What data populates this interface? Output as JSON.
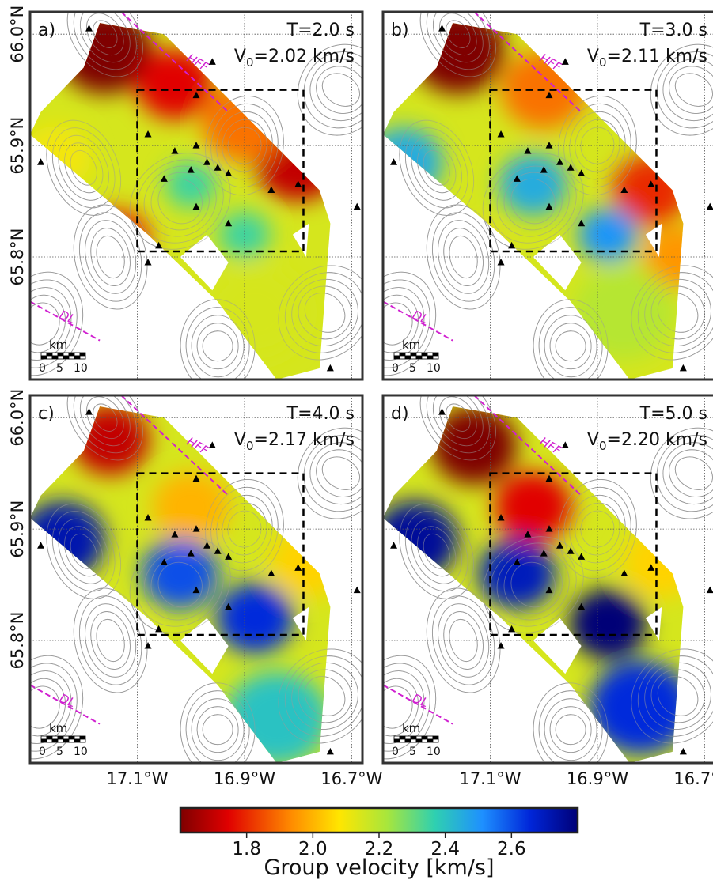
{
  "panels": [
    {
      "id": "a",
      "label": "a)",
      "period": "T=2.0 s",
      "v0_prefix": "V",
      "v0_sub": "0",
      "v0_value": "=2.02 km/s",
      "anomalies": [
        {
          "lon": -17.16,
          "lat": 65.985,
          "v": 1.55,
          "r": 0.055
        },
        {
          "lon": -17.03,
          "lat": 65.955,
          "v": 1.75,
          "r": 0.045
        },
        {
          "lon": -16.8,
          "lat": 65.885,
          "v": 1.7,
          "r": 0.05
        },
        {
          "lon": -16.9,
          "lat": 65.92,
          "v": 1.9,
          "r": 0.05
        },
        {
          "lon": -17.14,
          "lat": 65.815,
          "v": 1.8,
          "r": 0.04
        },
        {
          "lon": -17.25,
          "lat": 65.89,
          "v": 2.1,
          "r": 0.04
        },
        {
          "lon": -17.0,
          "lat": 65.865,
          "v": 2.35,
          "r": 0.03
        },
        {
          "lon": -16.9,
          "lat": 65.82,
          "v": 2.35,
          "r": 0.03
        },
        {
          "lon": -16.88,
          "lat": 65.75,
          "v": 2.15,
          "r": 0.06
        }
      ]
    },
    {
      "id": "b",
      "label": "b)",
      "period": "T=3.0 s",
      "v0_prefix": "V",
      "v0_sub": "0",
      "v0_value": "=2.11 km/s",
      "anomalies": [
        {
          "lon": -17.16,
          "lat": 65.985,
          "v": 1.55,
          "r": 0.055
        },
        {
          "lon": -17.0,
          "lat": 65.95,
          "v": 1.9,
          "r": 0.05
        },
        {
          "lon": -16.8,
          "lat": 65.86,
          "v": 1.8,
          "r": 0.045
        },
        {
          "lon": -16.75,
          "lat": 65.8,
          "v": 1.95,
          "r": 0.04
        },
        {
          "lon": -17.26,
          "lat": 65.885,
          "v": 2.45,
          "r": 0.045
        },
        {
          "lon": -17.02,
          "lat": 65.865,
          "v": 2.45,
          "r": 0.04
        },
        {
          "lon": -16.88,
          "lat": 65.82,
          "v": 2.5,
          "r": 0.035
        },
        {
          "lon": -17.14,
          "lat": 65.8,
          "v": 2.0,
          "r": 0.035
        },
        {
          "lon": -16.85,
          "lat": 65.75,
          "v": 2.2,
          "r": 0.06
        }
      ]
    },
    {
      "id": "c",
      "label": "c)",
      "period": "T=4.0 s",
      "v0_prefix": "V",
      "v0_sub": "0",
      "v0_value": "=2.17 km/s",
      "anomalies": [
        {
          "lon": -17.15,
          "lat": 65.98,
          "v": 1.7,
          "r": 0.045
        },
        {
          "lon": -17.0,
          "lat": 65.92,
          "v": 2.0,
          "r": 0.045
        },
        {
          "lon": -16.78,
          "lat": 65.87,
          "v": 2.05,
          "r": 0.045
        },
        {
          "lon": -17.24,
          "lat": 65.89,
          "v": 2.72,
          "r": 0.05
        },
        {
          "lon": -17.02,
          "lat": 65.86,
          "v": 2.6,
          "r": 0.045
        },
        {
          "lon": -16.88,
          "lat": 65.82,
          "v": 2.65,
          "r": 0.045
        },
        {
          "lon": -17.13,
          "lat": 65.79,
          "v": 2.1,
          "r": 0.035
        },
        {
          "lon": -16.84,
          "lat": 65.73,
          "v": 2.4,
          "r": 0.06
        }
      ]
    },
    {
      "id": "d",
      "label": "d)",
      "period": "T=5.0 s",
      "v0_prefix": "V",
      "v0_sub": "0",
      "v0_value": "=2.20 km/s",
      "anomalies": [
        {
          "lon": -17.13,
          "lat": 65.975,
          "v": 1.6,
          "r": 0.05
        },
        {
          "lon": -17.02,
          "lat": 65.92,
          "v": 1.75,
          "r": 0.045
        },
        {
          "lon": -16.78,
          "lat": 65.87,
          "v": 2.05,
          "r": 0.045
        },
        {
          "lon": -17.24,
          "lat": 65.89,
          "v": 2.75,
          "r": 0.05
        },
        {
          "lon": -17.05,
          "lat": 65.86,
          "v": 2.7,
          "r": 0.045
        },
        {
          "lon": -16.88,
          "lat": 65.815,
          "v": 2.8,
          "r": 0.045
        },
        {
          "lon": -16.82,
          "lat": 65.74,
          "v": 2.65,
          "r": 0.06
        },
        {
          "lon": -17.13,
          "lat": 65.79,
          "v": 2.15,
          "r": 0.035
        }
      ]
    }
  ],
  "axes": {
    "lat_ticks": [
      {
        "value": 66.0,
        "label": "66.0°N"
      },
      {
        "value": 65.9,
        "label": "65.9°N"
      },
      {
        "value": 65.8,
        "label": "65.8°N"
      }
    ],
    "lon_ticks": [
      {
        "value": -17.1,
        "label": "17.1°W"
      },
      {
        "value": -16.9,
        "label": "16.9°W"
      },
      {
        "value": -16.7,
        "label": "16.7°W"
      }
    ],
    "lon_range": [
      -17.3,
      -16.68
    ],
    "lat_range": [
      65.69,
      66.02
    ]
  },
  "map": {
    "coverage_polygon": [
      [
        -17.17,
        66.01
      ],
      [
        -17.05,
        66.0
      ],
      [
        -16.76,
        65.86
      ],
      [
        -16.74,
        65.83
      ],
      [
        -16.76,
        65.7
      ],
      [
        -16.84,
        65.69
      ],
      [
        -16.95,
        65.76
      ],
      [
        -17.08,
        65.82
      ],
      [
        -17.3,
        65.91
      ],
      [
        -17.28,
        65.93
      ],
      [
        -17.2,
        65.97
      ]
    ],
    "holes": [
      [
        [
          -17.215,
          65.855
        ],
        [
          -17.18,
          65.835
        ],
        [
          -17.165,
          65.848
        ],
        [
          -17.2,
          65.865
        ]
      ],
      [
        [
          -17.02,
          65.8
        ],
        [
          -16.96,
          65.77
        ],
        [
          -16.93,
          65.795
        ],
        [
          -16.97,
          65.82
        ]
      ],
      [
        [
          -16.81,
          65.82
        ],
        [
          -16.785,
          65.8
        ],
        [
          -16.78,
          65.83
        ]
      ]
    ],
    "stations": [
      [
        -17.19,
        66.005
      ],
      [
        -16.96,
        65.975
      ],
      [
        -16.99,
        65.945
      ],
      [
        -17.08,
        65.91
      ],
      [
        -17.03,
        65.895
      ],
      [
        -16.99,
        65.9
      ],
      [
        -17.0,
        65.878
      ],
      [
        -16.97,
        65.885
      ],
      [
        -16.95,
        65.88
      ],
      [
        -16.93,
        65.875
      ],
      [
        -16.85,
        65.86
      ],
      [
        -17.05,
        65.87
      ],
      [
        -17.06,
        65.81
      ],
      [
        -16.99,
        65.845
      ],
      [
        -16.93,
        65.83
      ],
      [
        -17.28,
        65.885
      ],
      [
        -16.69,
        65.845
      ],
      [
        -17.08,
        65.795
      ],
      [
        -16.74,
        65.7
      ],
      [
        -16.8,
        65.865
      ]
    ],
    "hff_line": [
      [
        -17.13,
        66.02
      ],
      [
        -16.93,
        65.93
      ]
    ],
    "hff_label": "HFF",
    "dl_line": [
      [
        -17.3,
        65.76
      ],
      [
        -17.17,
        65.725
      ]
    ],
    "dl_label": "DL",
    "study_box": [
      [
        -17.1,
        65.95
      ],
      [
        -16.79,
        65.805
      ]
    ],
    "scale_bar": {
      "unit": "km",
      "labels": [
        "0",
        "5",
        "10"
      ]
    }
  },
  "colorbar": {
    "ticks": [
      {
        "value": 1.8,
        "label": "1.8"
      },
      {
        "value": 2.0,
        "label": "2.0"
      },
      {
        "value": 2.2,
        "label": "2.2"
      },
      {
        "value": 2.4,
        "label": "2.4"
      },
      {
        "value": 2.6,
        "label": "2.6"
      }
    ],
    "vmin": 1.6,
    "vmax": 2.8,
    "label": "Group velocity [km/s]"
  },
  "colors": {
    "hff_line": "#d020d0",
    "study_box": "#000000",
    "contour": "#9a9a9a",
    "grid": "#555555",
    "station": "#000000"
  }
}
